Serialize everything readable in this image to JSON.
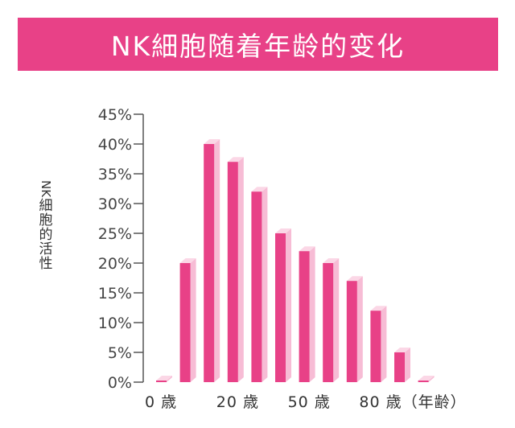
{
  "header": {
    "title": "NK細胞随着年龄的变化"
  },
  "chart_data": {
    "type": "bar",
    "title": "NK細胞随着年龄的变化",
    "ylabel": "NK細胞的活性",
    "xlabel": "",
    "ylim": [
      0,
      45
    ],
    "yticks": [
      0,
      5,
      10,
      15,
      20,
      25,
      30,
      35,
      40,
      45
    ],
    "ytick_labels": [
      "0%",
      "5%",
      "10%",
      "15%",
      "20%",
      "25%",
      "30%",
      "35%",
      "40%",
      "45%"
    ],
    "x_tick_labels": [
      {
        "text": "0 歳",
        "index": 0
      },
      {
        "text": "20 歳",
        "index": 3
      },
      {
        "text": "50 歳",
        "index": 6
      },
      {
        "text": "80 歳（年齢）",
        "index": 9
      }
    ],
    "values": [
      0,
      20,
      40,
      37,
      32,
      25,
      22,
      20,
      17,
      12,
      5,
      0
    ],
    "grid": false,
    "colors": {
      "bar_front": "#e84187",
      "bar_side": "#f7bcd5",
      "bar_top": "#fbd7e6",
      "axis": "#555555",
      "header": "#e84187"
    }
  }
}
